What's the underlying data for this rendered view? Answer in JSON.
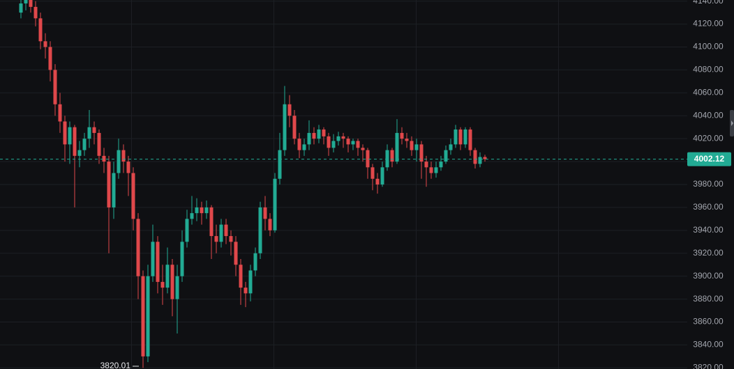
{
  "chart_data": {
    "type": "candlestick",
    "open": [
      4130,
      4138,
      4141,
      4135,
      4125,
      4105,
      4100,
      4080,
      4050,
      4035,
      4015,
      4030,
      4005,
      4010,
      4020,
      4030,
      4025,
      4005,
      4000,
      3960,
      3990,
      4010,
      4000,
      3990,
      3950,
      3900,
      3830,
      3900,
      3930,
      3895,
      3890,
      3910,
      3880,
      3900,
      3930,
      3950,
      3955,
      3960,
      3955,
      3960,
      3935,
      3930,
      3945,
      3935,
      3930,
      3910,
      3890,
      3885,
      3905,
      3920,
      3960,
      3950,
      3940,
      3985,
      4010,
      4050,
      4040,
      4020,
      4010,
      4015,
      4025,
      4020,
      4028,
      4022,
      4012,
      4018,
      4022,
      4020,
      4015,
      4018,
      4012,
      4010,
      3995,
      3985,
      3980,
      3995,
      4010,
      4000,
      4025,
      4020,
      4018,
      4010,
      4015,
      4000,
      3995,
      3990,
      3995,
      4000,
      4010,
      4015,
      4028,
      4015,
      4028,
      4010,
      3998,
      4004
    ],
    "high": [
      4145,
      4148,
      4146,
      4140,
      4130,
      4112,
      4105,
      4085,
      4060,
      4040,
      4035,
      4032,
      4018,
      4025,
      4045,
      4035,
      4028,
      4012,
      4005,
      4000,
      4020,
      4015,
      4005,
      3995,
      3955,
      3905,
      3910,
      3945,
      3935,
      3910,
      3925,
      3915,
      3910,
      3940,
      3958,
      3970,
      3968,
      3965,
      3966,
      3962,
      3945,
      3950,
      3950,
      3940,
      3935,
      3915,
      3895,
      3910,
      3925,
      3965,
      3970,
      3955,
      3990,
      4025,
      4066,
      4058,
      4045,
      4025,
      4020,
      4036,
      4030,
      4032,
      4030,
      4025,
      4024,
      4026,
      4025,
      4022,
      4020,
      4020,
      4015,
      4012,
      3998,
      3990,
      4000,
      4015,
      4012,
      4037,
      4030,
      4025,
      4022,
      4020,
      4018,
      4005,
      4000,
      4000,
      4005,
      4014,
      4020,
      4032,
      4030,
      4030,
      4030,
      4012,
      4008,
      4006
    ],
    "low": [
      4125,
      4132,
      4130,
      4118,
      4098,
      4090,
      4070,
      4040,
      4025,
      4000,
      3998,
      3960,
      3995,
      4005,
      4012,
      4015,
      3998,
      3990,
      3920,
      3950,
      3985,
      3990,
      3970,
      3940,
      3880,
      3820.01,
      3825,
      3895,
      3885,
      3875,
      3885,
      3865,
      3850,
      3895,
      3925,
      3945,
      3948,
      3945,
      3950,
      3915,
      3920,
      3925,
      3928,
      3918,
      3900,
      3875,
      3873,
      3878,
      3900,
      3915,
      3940,
      3935,
      3938,
      3980,
      4005,
      4030,
      4015,
      4003,
      4005,
      4010,
      4015,
      4016,
      4015,
      4005,
      4008,
      4014,
      4012,
      4008,
      4010,
      4005,
      4000,
      3985,
      3975,
      3972,
      3978,
      3992,
      3995,
      3998,
      4015,
      4012,
      4005,
      4000,
      3985,
      3978,
      3985,
      3986,
      3992,
      3998,
      4006,
      4012,
      4010,
      4012,
      4005,
      3994,
      3995,
      4000
    ],
    "close": [
      4138,
      4141,
      4135,
      4125,
      4105,
      4100,
      4080,
      4050,
      4035,
      4015,
      4030,
      4005,
      4010,
      4020,
      4030,
      4025,
      4005,
      4000,
      3960,
      3990,
      4010,
      4000,
      3990,
      3950,
      3900,
      3830,
      3900,
      3930,
      3895,
      3890,
      3910,
      3880,
      3900,
      3930,
      3950,
      3955,
      3960,
      3955,
      3960,
      3935,
      3930,
      3945,
      3935,
      3930,
      3910,
      3890,
      3885,
      3905,
      3920,
      3960,
      3950,
      3940,
      3985,
      4010,
      4050,
      4040,
      4020,
      4010,
      4015,
      4025,
      4020,
      4028,
      4022,
      4012,
      4018,
      4022,
      4020,
      4015,
      4018,
      4012,
      4010,
      3995,
      3985,
      3980,
      3995,
      4010,
      4000,
      4025,
      4020,
      4018,
      4010,
      4015,
      4000,
      3995,
      3990,
      3995,
      4000,
      4010,
      4015,
      4028,
      4015,
      4028,
      4010,
      3998,
      4004,
      4002.12
    ],
    "up_color": "#22ab94",
    "down_color": "#e0484b",
    "ylim": [
      3819,
      4141
    ],
    "yticks": [
      {
        "value": 3820,
        "label": "3820.00"
      },
      {
        "value": 3840,
        "label": "3840.00"
      },
      {
        "value": 3860,
        "label": "3860.00"
      },
      {
        "value": 3880,
        "label": "3880.00"
      },
      {
        "value": 3900,
        "label": "3900.00"
      },
      {
        "value": 3920,
        "label": "3920.00"
      },
      {
        "value": 3940,
        "label": "3940.00"
      },
      {
        "value": 3960,
        "label": "3960.00"
      },
      {
        "value": 3980,
        "label": "3980.00"
      },
      {
        "value": 4000,
        "label": "4000.00"
      },
      {
        "value": 4020,
        "label": "4020.00"
      },
      {
        "value": 4040,
        "label": "4040.00"
      },
      {
        "value": 4060,
        "label": "4060.00"
      },
      {
        "value": 4080,
        "label": "4080.00"
      },
      {
        "value": 4100,
        "label": "4100.00"
      },
      {
        "value": 4120,
        "label": "4120.00"
      },
      {
        "value": 4140,
        "label": "4140.00"
      }
    ],
    "grid": true
  }
}
